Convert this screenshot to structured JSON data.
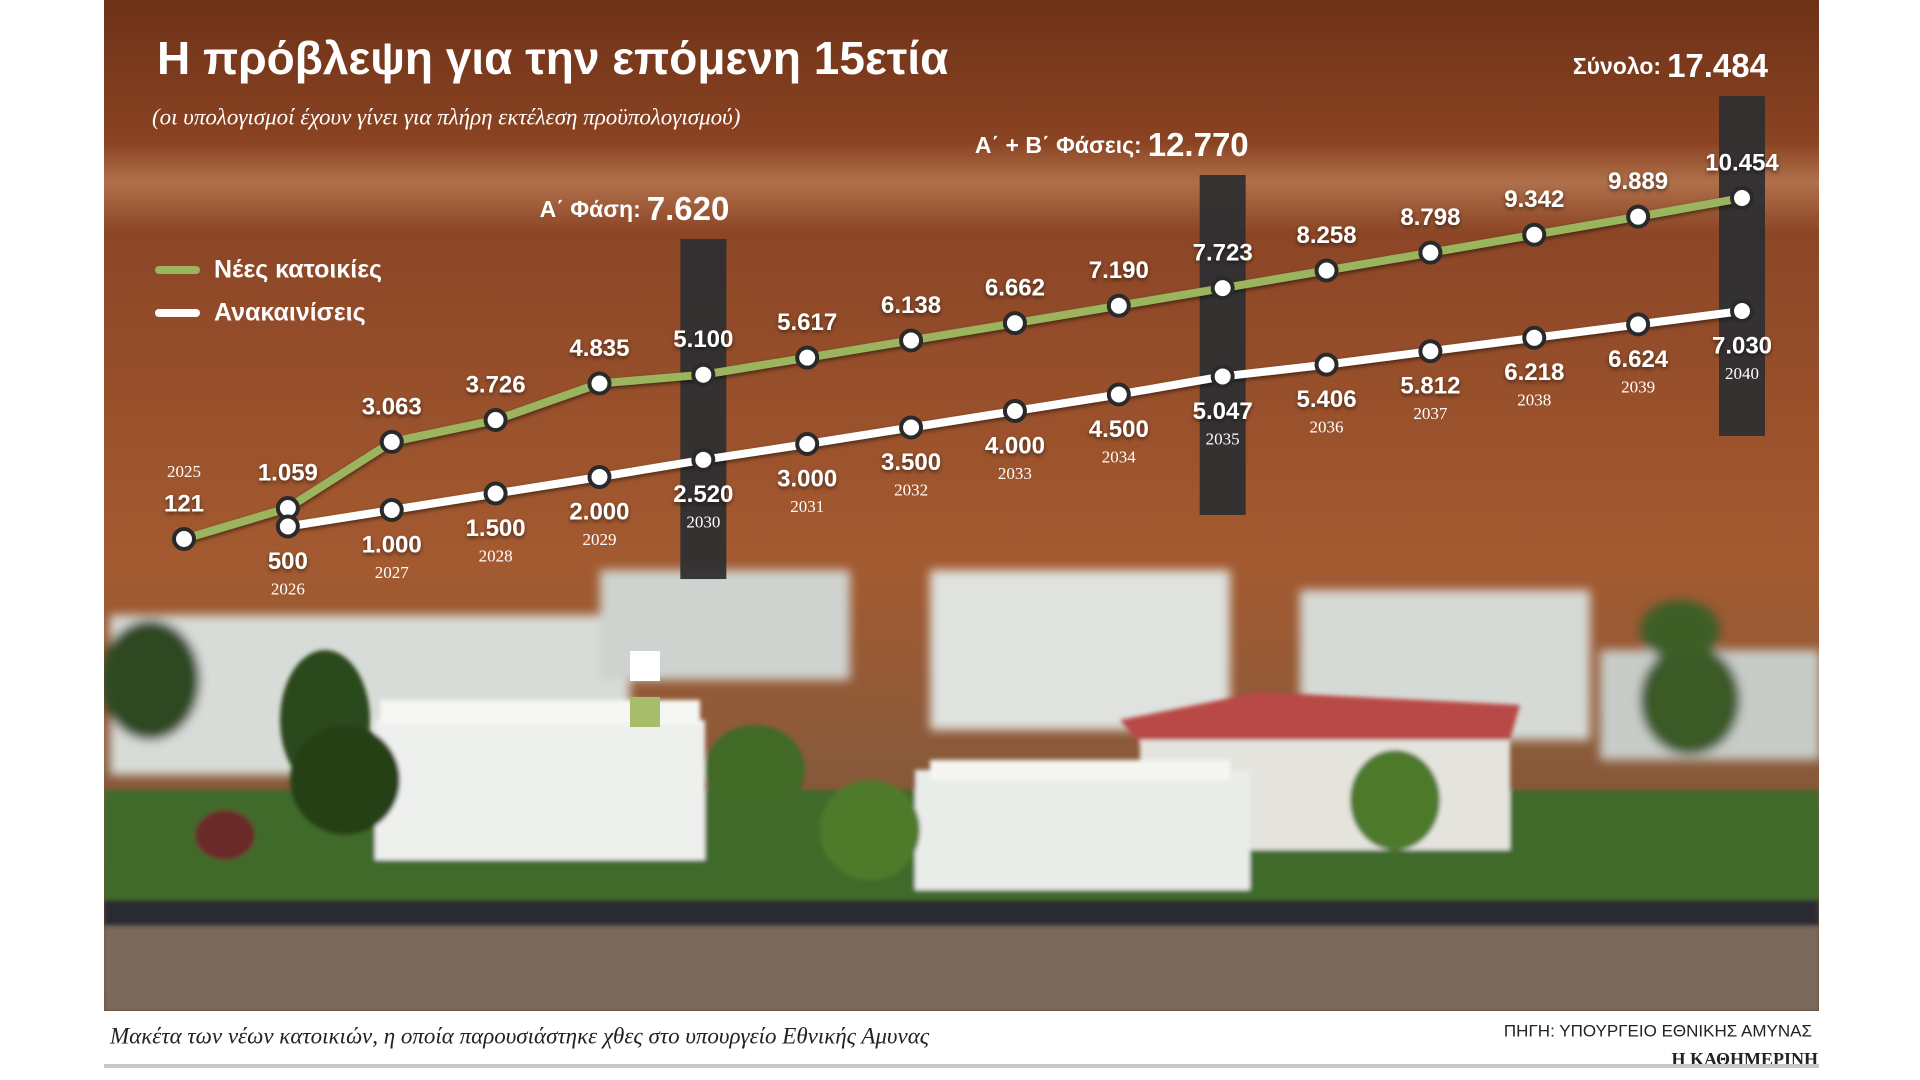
{
  "chart_data": {
    "type": "line",
    "title": "Η πρόβλεψη για την επόμενη 15ετία",
    "subtitle": "(οι υπολογισμοί έχουν γίνει για πλήρη εκτέλεση προϋπολογισμού)",
    "x": [
      2025,
      2026,
      2027,
      2028,
      2029,
      2030,
      2031,
      2032,
      2033,
      2034,
      2035,
      2036,
      2037,
      2038,
      2039,
      2040
    ],
    "series": [
      {
        "name": "Νέες κατοικίες",
        "color": "#9bb55e",
        "values": [
          121,
          1059,
          3063,
          3726,
          4835,
          5100,
          5617,
          6138,
          6662,
          7190,
          7723,
          8258,
          8798,
          9342,
          9889,
          10454
        ],
        "value_labels": [
          "121",
          "1.059",
          "3.063",
          "3.726",
          "4.835",
          "5.100",
          "5.617",
          "6.138",
          "6.662",
          "7.190",
          "7.723",
          "8.258",
          "8.798",
          "9.342",
          "9.889",
          "10.454"
        ]
      },
      {
        "name": "Ανακαινίσεις",
        "color": "#ffffff",
        "values": [
          null,
          500,
          1000,
          1500,
          2000,
          2520,
          3000,
          3500,
          4000,
          4500,
          5047,
          5406,
          5812,
          6218,
          6624,
          7030
        ],
        "value_labels": [
          null,
          "500",
          "1.000",
          "1.500",
          "2.000",
          "2.520",
          "3.000",
          "3.500",
          "4.000",
          "4.500",
          "5.047",
          "5.406",
          "5.812",
          "6.218",
          "6.624",
          "7.030"
        ]
      }
    ],
    "ylim": [
      0,
      12000
    ],
    "annotations": [
      {
        "x": 2030,
        "label": "Α΄ Φάση:",
        "value": 7620,
        "value_label": "7.620"
      },
      {
        "x": 2035,
        "label": "Α΄ + Β΄ Φάσεις:",
        "value": 12770,
        "value_label": "12.770"
      },
      {
        "x": 2040,
        "label": "Σύνολο:",
        "value": 17484,
        "value_label": "17.484"
      }
    ]
  },
  "caption": "Μακέτα των νέων κατοικιών, η οποία παρουσιάστηκε χθες στο υπουργείο Εθνικής Αμυνας",
  "source": "ΠΗΓΗ: ΥΠΟΥΡΓΕΙΟ ΕΘΝΙΚΗΣ ΑΜΥΝΑΣ",
  "publisher": "Η ΚΑΘΗΜΕΡΙΝΗ"
}
